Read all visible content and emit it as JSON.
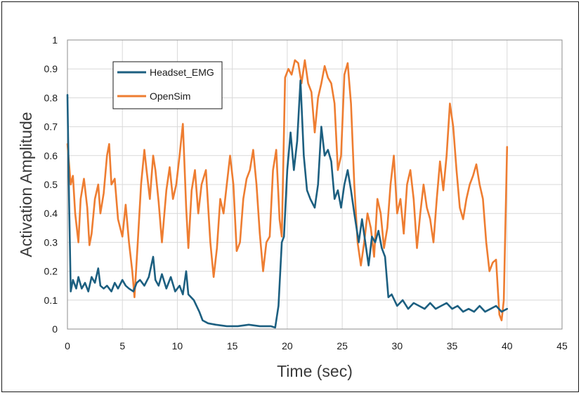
{
  "chart_data": {
    "type": "line",
    "title": "",
    "xlabel": "Time (sec)",
    "ylabel": "Activation Amplitude",
    "xlim": [
      0,
      45
    ],
    "ylim": [
      0,
      1
    ],
    "xticks": [
      "0",
      "5",
      "10",
      "15",
      "20",
      "25",
      "30",
      "35",
      "40",
      "45"
    ],
    "yticks": [
      "0",
      "0.1",
      "0.2",
      "0.3",
      "0.4",
      "0.5",
      "0.6",
      "0.7",
      "0.8",
      "0.9",
      "1"
    ],
    "grid": true,
    "legend_position": "top-left",
    "series": [
      {
        "name": "Headset_EMG",
        "color": "#1c5f80",
        "points": [
          [
            0,
            0.81
          ],
          [
            0.15,
            0.45
          ],
          [
            0.3,
            0.13
          ],
          [
            0.5,
            0.17
          ],
          [
            0.8,
            0.14
          ],
          [
            1.0,
            0.18
          ],
          [
            1.3,
            0.14
          ],
          [
            1.6,
            0.16
          ],
          [
            1.9,
            0.13
          ],
          [
            2.2,
            0.18
          ],
          [
            2.5,
            0.16
          ],
          [
            2.8,
            0.21
          ],
          [
            3.0,
            0.15
          ],
          [
            3.3,
            0.14
          ],
          [
            3.6,
            0.15
          ],
          [
            4.0,
            0.13
          ],
          [
            4.3,
            0.16
          ],
          [
            4.6,
            0.14
          ],
          [
            5.0,
            0.17
          ],
          [
            5.3,
            0.15
          ],
          [
            5.6,
            0.14
          ],
          [
            6.0,
            0.13
          ],
          [
            6.3,
            0.16
          ],
          [
            6.6,
            0.17
          ],
          [
            7.0,
            0.15
          ],
          [
            7.4,
            0.18
          ],
          [
            7.8,
            0.25
          ],
          [
            8.0,
            0.17
          ],
          [
            8.3,
            0.15
          ],
          [
            8.6,
            0.19
          ],
          [
            9.0,
            0.14
          ],
          [
            9.4,
            0.18
          ],
          [
            9.8,
            0.13
          ],
          [
            10.2,
            0.15
          ],
          [
            10.5,
            0.12
          ],
          [
            10.8,
            0.2
          ],
          [
            11.0,
            0.12
          ],
          [
            11.5,
            0.1
          ],
          [
            12.0,
            0.06
          ],
          [
            12.3,
            0.03
          ],
          [
            12.8,
            0.02
          ],
          [
            13.5,
            0.015
          ],
          [
            14.5,
            0.01
          ],
          [
            15.5,
            0.01
          ],
          [
            16.5,
            0.015
          ],
          [
            17.5,
            0.01
          ],
          [
            18.5,
            0.01
          ],
          [
            18.9,
            0.005
          ],
          [
            19.2,
            0.08
          ],
          [
            19.5,
            0.3
          ],
          [
            19.7,
            0.32
          ],
          [
            20.0,
            0.55
          ],
          [
            20.3,
            0.68
          ],
          [
            20.6,
            0.55
          ],
          [
            20.9,
            0.65
          ],
          [
            21.2,
            0.86
          ],
          [
            21.5,
            0.6
          ],
          [
            21.8,
            0.48
          ],
          [
            22.1,
            0.45
          ],
          [
            22.5,
            0.42
          ],
          [
            22.8,
            0.5
          ],
          [
            23.1,
            0.7
          ],
          [
            23.4,
            0.6
          ],
          [
            23.7,
            0.62
          ],
          [
            24.0,
            0.58
          ],
          [
            24.3,
            0.45
          ],
          [
            24.6,
            0.48
          ],
          [
            24.9,
            0.42
          ],
          [
            25.2,
            0.5
          ],
          [
            25.5,
            0.55
          ],
          [
            25.8,
            0.48
          ],
          [
            26.1,
            0.4
          ],
          [
            26.5,
            0.3
          ],
          [
            26.8,
            0.38
          ],
          [
            27.1,
            0.3
          ],
          [
            27.4,
            0.22
          ],
          [
            27.7,
            0.32
          ],
          [
            28.0,
            0.3
          ],
          [
            28.3,
            0.34
          ],
          [
            28.6,
            0.28
          ],
          [
            28.9,
            0.25
          ],
          [
            29.2,
            0.11
          ],
          [
            29.5,
            0.12
          ],
          [
            30.0,
            0.08
          ],
          [
            30.5,
            0.1
          ],
          [
            31.0,
            0.07
          ],
          [
            31.5,
            0.09
          ],
          [
            32.0,
            0.08
          ],
          [
            32.5,
            0.07
          ],
          [
            33.0,
            0.09
          ],
          [
            33.5,
            0.07
          ],
          [
            34.0,
            0.08
          ],
          [
            34.5,
            0.09
          ],
          [
            35.0,
            0.07
          ],
          [
            35.5,
            0.08
          ],
          [
            36.0,
            0.06
          ],
          [
            36.5,
            0.07
          ],
          [
            37.0,
            0.06
          ],
          [
            37.5,
            0.08
          ],
          [
            38.0,
            0.06
          ],
          [
            38.5,
            0.07
          ],
          [
            39.0,
            0.08
          ],
          [
            39.5,
            0.06
          ],
          [
            40.0,
            0.07
          ]
        ]
      },
      {
        "name": "OpenSim",
        "color": "#ee7d31",
        "points": [
          [
            0,
            0.64
          ],
          [
            0.3,
            0.5
          ],
          [
            0.5,
            0.53
          ],
          [
            0.7,
            0.4
          ],
          [
            1.0,
            0.3
          ],
          [
            1.2,
            0.45
          ],
          [
            1.5,
            0.52
          ],
          [
            1.8,
            0.42
          ],
          [
            2.0,
            0.29
          ],
          [
            2.2,
            0.33
          ],
          [
            2.5,
            0.45
          ],
          [
            2.8,
            0.5
          ],
          [
            3.0,
            0.4
          ],
          [
            3.3,
            0.47
          ],
          [
            3.6,
            0.6
          ],
          [
            3.8,
            0.64
          ],
          [
            4.0,
            0.5
          ],
          [
            4.3,
            0.52
          ],
          [
            4.6,
            0.38
          ],
          [
            5.0,
            0.32
          ],
          [
            5.3,
            0.43
          ],
          [
            5.6,
            0.3
          ],
          [
            5.9,
            0.2
          ],
          [
            6.1,
            0.11
          ],
          [
            6.4,
            0.3
          ],
          [
            6.7,
            0.5
          ],
          [
            7.0,
            0.62
          ],
          [
            7.2,
            0.55
          ],
          [
            7.5,
            0.45
          ],
          [
            7.8,
            0.6
          ],
          [
            8.0,
            0.55
          ],
          [
            8.3,
            0.44
          ],
          [
            8.6,
            0.3
          ],
          [
            9.0,
            0.48
          ],
          [
            9.3,
            0.56
          ],
          [
            9.6,
            0.45
          ],
          [
            9.9,
            0.5
          ],
          [
            10.2,
            0.6
          ],
          [
            10.5,
            0.71
          ],
          [
            10.8,
            0.42
          ],
          [
            11.0,
            0.28
          ],
          [
            11.3,
            0.48
          ],
          [
            11.6,
            0.55
          ],
          [
            11.9,
            0.4
          ],
          [
            12.2,
            0.5
          ],
          [
            12.6,
            0.55
          ],
          [
            13.0,
            0.3
          ],
          [
            13.3,
            0.18
          ],
          [
            13.6,
            0.28
          ],
          [
            13.9,
            0.45
          ],
          [
            14.2,
            0.4
          ],
          [
            14.5,
            0.5
          ],
          [
            14.8,
            0.6
          ],
          [
            15.1,
            0.5
          ],
          [
            15.4,
            0.27
          ],
          [
            15.7,
            0.3
          ],
          [
            16.0,
            0.45
          ],
          [
            16.3,
            0.52
          ],
          [
            16.6,
            0.55
          ],
          [
            16.9,
            0.62
          ],
          [
            17.2,
            0.5
          ],
          [
            17.5,
            0.33
          ],
          [
            17.8,
            0.2
          ],
          [
            18.1,
            0.3
          ],
          [
            18.4,
            0.32
          ],
          [
            18.7,
            0.55
          ],
          [
            19.0,
            0.62
          ],
          [
            19.3,
            0.38
          ],
          [
            19.5,
            0.32
          ],
          [
            19.8,
            0.87
          ],
          [
            20.1,
            0.9
          ],
          [
            20.4,
            0.88
          ],
          [
            20.7,
            0.93
          ],
          [
            21.0,
            0.92
          ],
          [
            21.3,
            0.85
          ],
          [
            21.6,
            0.93
          ],
          [
            21.9,
            0.85
          ],
          [
            22.2,
            0.82
          ],
          [
            22.5,
            0.68
          ],
          [
            22.8,
            0.8
          ],
          [
            23.1,
            0.85
          ],
          [
            23.4,
            0.91
          ],
          [
            23.7,
            0.87
          ],
          [
            24.0,
            0.85
          ],
          [
            24.3,
            0.78
          ],
          [
            24.6,
            0.55
          ],
          [
            24.9,
            0.6
          ],
          [
            25.2,
            0.88
          ],
          [
            25.5,
            0.92
          ],
          [
            25.8,
            0.78
          ],
          [
            26.1,
            0.5
          ],
          [
            26.4,
            0.3
          ],
          [
            26.7,
            0.22
          ],
          [
            27.0,
            0.3
          ],
          [
            27.3,
            0.4
          ],
          [
            27.6,
            0.35
          ],
          [
            27.9,
            0.25
          ],
          [
            28.2,
            0.45
          ],
          [
            28.5,
            0.4
          ],
          [
            28.8,
            0.28
          ],
          [
            29.1,
            0.35
          ],
          [
            29.4,
            0.5
          ],
          [
            29.7,
            0.6
          ],
          [
            30.0,
            0.4
          ],
          [
            30.3,
            0.45
          ],
          [
            30.6,
            0.33
          ],
          [
            30.9,
            0.5
          ],
          [
            31.2,
            0.55
          ],
          [
            31.5,
            0.45
          ],
          [
            31.8,
            0.28
          ],
          [
            32.1,
            0.4
          ],
          [
            32.4,
            0.5
          ],
          [
            32.7,
            0.42
          ],
          [
            33.0,
            0.38
          ],
          [
            33.3,
            0.3
          ],
          [
            33.6,
            0.45
          ],
          [
            33.9,
            0.58
          ],
          [
            34.2,
            0.48
          ],
          [
            34.5,
            0.6
          ],
          [
            34.8,
            0.78
          ],
          [
            35.1,
            0.7
          ],
          [
            35.4,
            0.55
          ],
          [
            35.7,
            0.42
          ],
          [
            36.0,
            0.38
          ],
          [
            36.3,
            0.45
          ],
          [
            36.6,
            0.5
          ],
          [
            36.9,
            0.53
          ],
          [
            37.2,
            0.57
          ],
          [
            37.5,
            0.5
          ],
          [
            37.8,
            0.45
          ],
          [
            38.1,
            0.3
          ],
          [
            38.4,
            0.2
          ],
          [
            38.7,
            0.23
          ],
          [
            39.0,
            0.24
          ],
          [
            39.3,
            0.05
          ],
          [
            39.5,
            0.03
          ],
          [
            39.7,
            0.1
          ],
          [
            40.0,
            0.63
          ]
        ]
      }
    ]
  }
}
